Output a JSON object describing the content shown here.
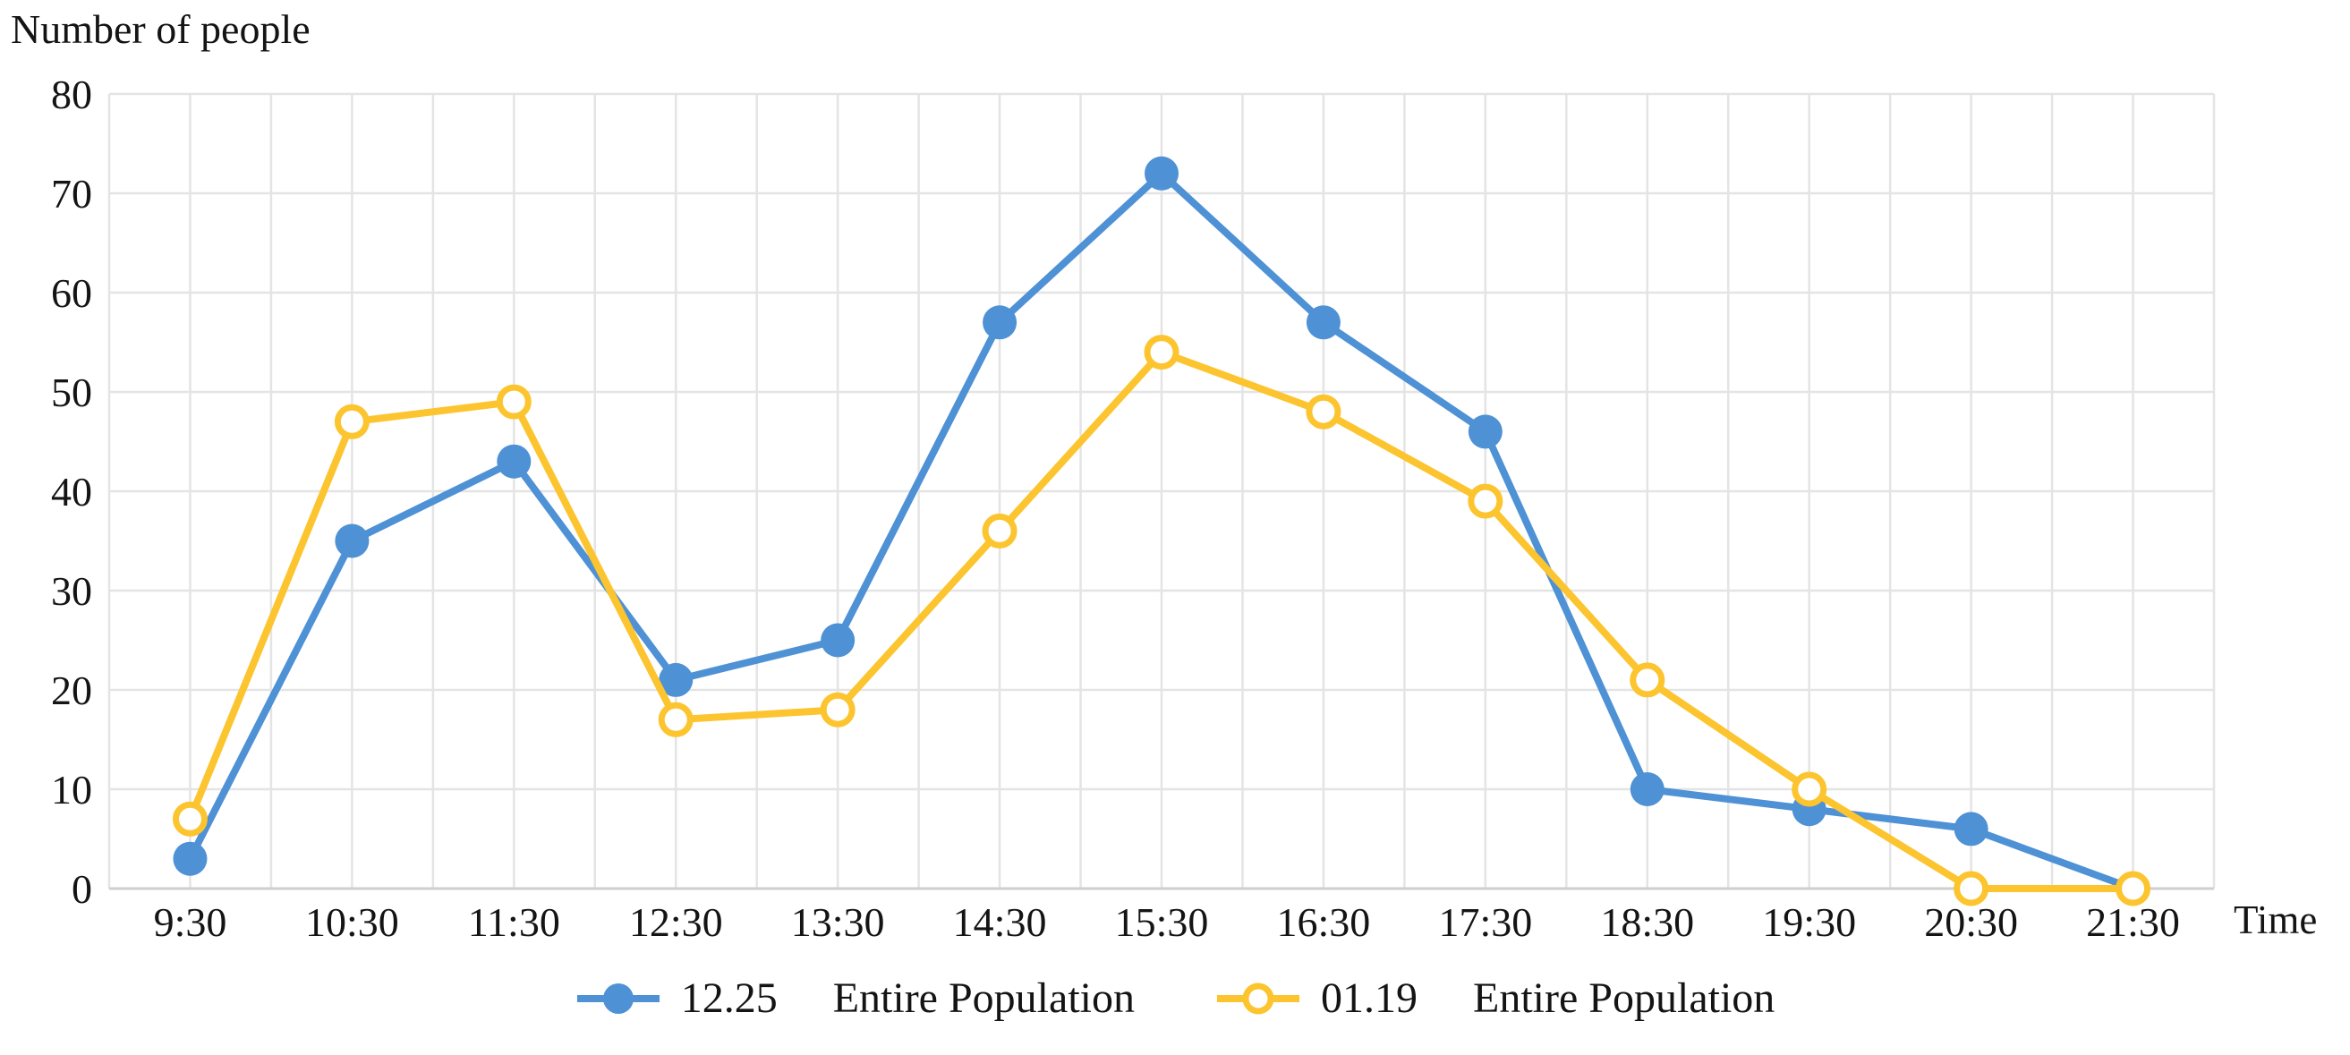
{
  "chart_data": {
    "type": "line",
    "title": "",
    "y_axis_title": "Number of people",
    "x_axis_title": "Time",
    "categories": [
      "9:30",
      "10:30",
      "11:30",
      "12:30",
      "13:30",
      "14:30",
      "15:30",
      "16:30",
      "17:30",
      "18:30",
      "19:30",
      "20:30",
      "21:30"
    ],
    "series": [
      {
        "name": "12.25 Entire Population",
        "legend_date": "12.25",
        "legend_text": "Entire Population",
        "color": "#4E91D5",
        "marker": "filled-circle",
        "values": [
          3,
          35,
          43,
          21,
          25,
          57,
          72,
          57,
          46,
          10,
          8,
          6,
          0
        ]
      },
      {
        "name": "01.19 Entire Population",
        "legend_date": "01.19",
        "legend_text": "Entire Population",
        "color": "#FCC42E",
        "marker": "open-circle",
        "values": [
          7,
          47,
          49,
          17,
          18,
          36,
          54,
          48,
          39,
          21,
          10,
          0,
          0
        ]
      }
    ],
    "y_axis": {
      "min": 0,
      "max": 80,
      "step": 10,
      "tick_labels": [
        "0",
        "10",
        "20",
        "30",
        "40",
        "50",
        "60",
        "70",
        "80"
      ]
    },
    "x_tick_labels": [
      "9:30",
      "10:30",
      "11:30",
      "12:30",
      "13:30",
      "14:30",
      "15:30",
      "16:30",
      "17:30",
      "18:30",
      "19:30",
      "20:30",
      "21:30"
    ],
    "grid": {
      "horizontal": true,
      "vertical": true,
      "vertical_lines_per_category": 2
    },
    "legend_position": "bottom-center",
    "colors": {
      "gridline": "#E4E4E4",
      "axis_line": "#CFCFCF",
      "text": "#141414",
      "background": "#FFFFFF"
    }
  }
}
